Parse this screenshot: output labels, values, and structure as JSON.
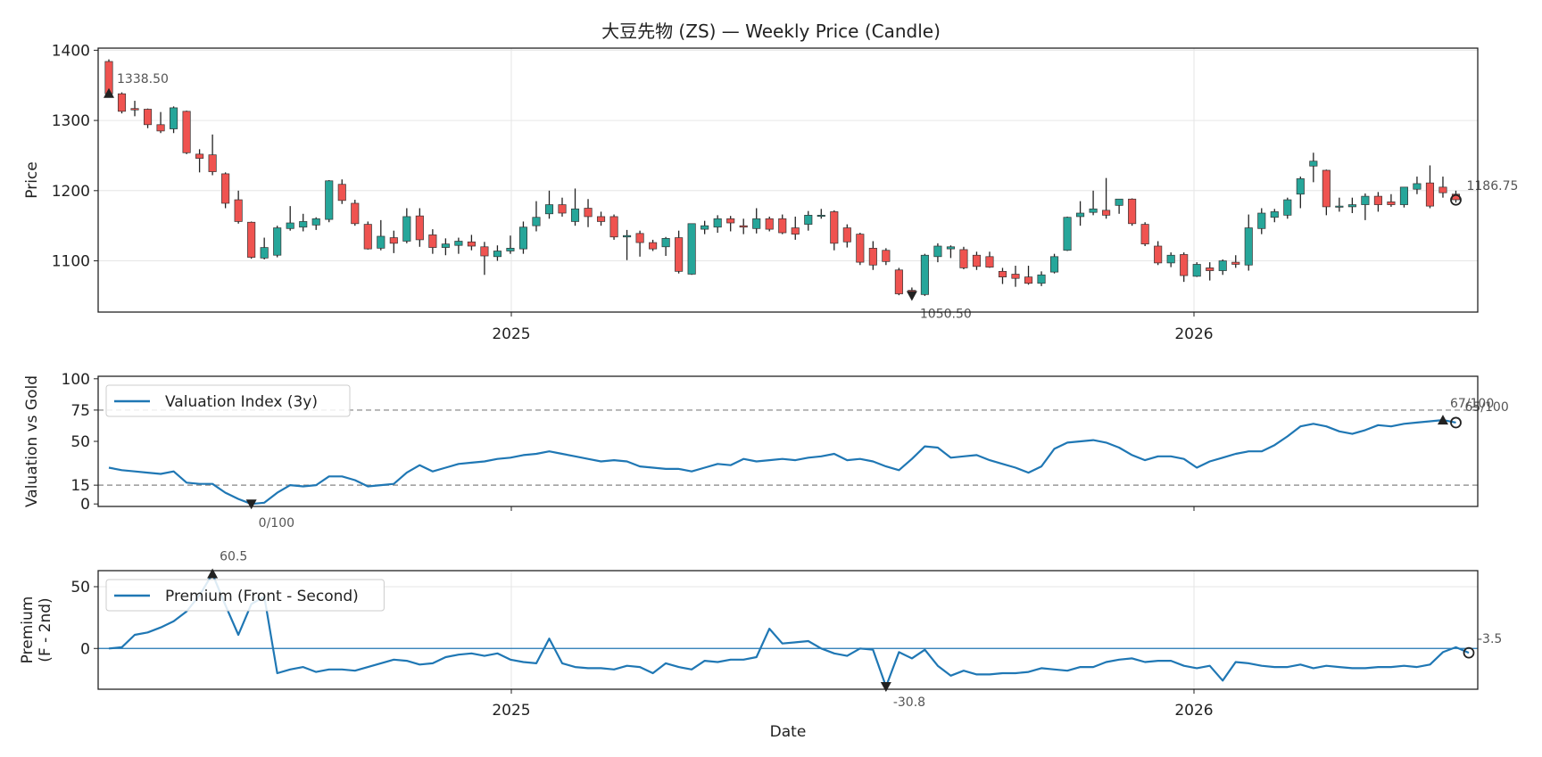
{
  "chart_data": [
    {
      "type": "candlestick",
      "title": "大豆先物 (ZS) — Weekly Price (Candle)",
      "ylabel": "Price",
      "ylim": [
        1027,
        1403
      ],
      "yticks": [
        1100,
        1200,
        1300,
        1400
      ],
      "xticks": [
        "2025",
        "2026"
      ],
      "grid": true,
      "colors": {
        "up": "#26a69a",
        "down": "#ef5350",
        "wick": "#222222"
      },
      "candles": [
        [
          1384,
          1387,
          1338,
          1338
        ],
        [
          1338,
          1340,
          1310,
          1313
        ],
        [
          1317,
          1328,
          1306,
          1315
        ],
        [
          1316,
          1317,
          1289,
          1294
        ],
        [
          1294,
          1312,
          1282,
          1285
        ],
        [
          1288,
          1320,
          1282,
          1318
        ],
        [
          1313,
          1314,
          1252,
          1254
        ],
        [
          1252,
          1259,
          1226,
          1246
        ],
        [
          1251,
          1280,
          1222,
          1227
        ],
        [
          1224,
          1226,
          1175,
          1182
        ],
        [
          1187,
          1200,
          1153,
          1156
        ],
        [
          1155,
          1156,
          1103,
          1105
        ],
        [
          1104,
          1133,
          1102,
          1119
        ],
        [
          1108,
          1150,
          1105,
          1147
        ],
        [
          1146,
          1178,
          1143,
          1154
        ],
        [
          1148,
          1167,
          1142,
          1156
        ],
        [
          1151,
          1162,
          1144,
          1160
        ],
        [
          1159,
          1215,
          1155,
          1214
        ],
        [
          1209,
          1216,
          1181,
          1186
        ],
        [
          1182,
          1187,
          1150,
          1153
        ],
        [
          1152,
          1156,
          1116,
          1117
        ],
        [
          1118,
          1158,
          1115,
          1135
        ],
        [
          1133,
          1143,
          1111,
          1125
        ],
        [
          1128,
          1175,
          1125,
          1163
        ],
        [
          1164,
          1175,
          1120,
          1130
        ],
        [
          1137,
          1145,
          1110,
          1119
        ],
        [
          1119,
          1132,
          1108,
          1124
        ],
        [
          1122,
          1133,
          1110,
          1128
        ],
        [
          1127,
          1137,
          1115,
          1121
        ],
        [
          1120,
          1127,
          1080,
          1107
        ],
        [
          1106,
          1122,
          1100,
          1114
        ],
        [
          1114,
          1136,
          1110,
          1118
        ],
        [
          1117,
          1156,
          1110,
          1148
        ],
        [
          1150,
          1185,
          1142,
          1162
        ],
        [
          1167,
          1200,
          1160,
          1180
        ],
        [
          1180,
          1190,
          1163,
          1168
        ],
        [
          1156,
          1203,
          1150,
          1174
        ],
        [
          1175,
          1188,
          1148,
          1163
        ],
        [
          1163,
          1170,
          1150,
          1156
        ],
        [
          1163,
          1166,
          1130,
          1134
        ],
        [
          1134,
          1144,
          1101,
          1136
        ],
        [
          1139,
          1143,
          1106,
          1126
        ],
        [
          1126,
          1130,
          1114,
          1117
        ],
        [
          1120,
          1134,
          1107,
          1132
        ],
        [
          1133,
          1143,
          1082,
          1085
        ],
        [
          1081,
          1153,
          1080,
          1153
        ],
        [
          1145,
          1157,
          1138,
          1150
        ],
        [
          1148,
          1165,
          1140,
          1160
        ],
        [
          1160,
          1164,
          1142,
          1154
        ],
        [
          1150,
          1160,
          1138,
          1148
        ],
        [
          1146,
          1175,
          1139,
          1160
        ],
        [
          1160,
          1163,
          1142,
          1145
        ],
        [
          1160,
          1166,
          1138,
          1140
        ],
        [
          1147,
          1163,
          1130,
          1138
        ],
        [
          1152,
          1171,
          1143,
          1165
        ],
        [
          1165,
          1174,
          1160,
          1165
        ],
        [
          1170,
          1172,
          1115,
          1125
        ],
        [
          1147,
          1152,
          1119,
          1127
        ],
        [
          1138,
          1140,
          1094,
          1098
        ],
        [
          1118,
          1128,
          1087,
          1094
        ],
        [
          1115,
          1118,
          1094,
          1099
        ],
        [
          1087,
          1090,
          1051,
          1053
        ],
        [
          1058,
          1062,
          1050,
          1057
        ],
        [
          1052,
          1110,
          1050,
          1108
        ],
        [
          1106,
          1125,
          1098,
          1121
        ],
        [
          1117,
          1122,
          1104,
          1120
        ],
        [
          1116,
          1120,
          1088,
          1090
        ],
        [
          1108,
          1113,
          1087,
          1092
        ],
        [
          1106,
          1113,
          1090,
          1091
        ],
        [
          1085,
          1090,
          1067,
          1077
        ],
        [
          1081,
          1093,
          1063,
          1075
        ],
        [
          1077,
          1093,
          1066,
          1068
        ],
        [
          1068,
          1085,
          1064,
          1080
        ],
        [
          1084,
          1110,
          1082,
          1106
        ],
        [
          1115,
          1163,
          1114,
          1162
        ],
        [
          1163,
          1185,
          1150,
          1168
        ],
        [
          1169,
          1200,
          1165,
          1174
        ],
        [
          1172,
          1218,
          1160,
          1165
        ],
        [
          1179,
          1188,
          1167,
          1188
        ],
        [
          1188,
          1189,
          1150,
          1153
        ],
        [
          1152,
          1155,
          1121,
          1124
        ],
        [
          1121,
          1128,
          1094,
          1097
        ],
        [
          1097,
          1112,
          1091,
          1108
        ],
        [
          1109,
          1112,
          1070,
          1079
        ],
        [
          1078,
          1098,
          1077,
          1095
        ],
        [
          1090,
          1098,
          1072,
          1086
        ],
        [
          1086,
          1102,
          1080,
          1100
        ],
        [
          1098,
          1108,
          1090,
          1095
        ],
        [
          1094,
          1166,
          1086,
          1147
        ],
        [
          1146,
          1175,
          1138,
          1168
        ],
        [
          1162,
          1174,
          1155,
          1170
        ],
        [
          1165,
          1190,
          1160,
          1187
        ],
        [
          1195,
          1220,
          1175,
          1217
        ],
        [
          1235,
          1254,
          1212,
          1242
        ],
        [
          1229,
          1230,
          1165,
          1177
        ],
        [
          1177,
          1190,
          1170,
          1178
        ],
        [
          1177,
          1190,
          1168,
          1180
        ],
        [
          1180,
          1196,
          1158,
          1192
        ],
        [
          1192,
          1198,
          1170,
          1180
        ],
        [
          1184,
          1195,
          1177,
          1180
        ],
        [
          1180,
          1205,
          1176,
          1205
        ],
        [
          1202,
          1220,
          1195,
          1210
        ],
        [
          1211,
          1236,
          1175,
          1178
        ],
        [
          1205,
          1220,
          1190,
          1197
        ],
        [
          1195,
          1200,
          1183,
          1187
        ]
      ],
      "annotations": [
        {
          "label": "1338.50",
          "index": 0,
          "value": 1338.5,
          "marker": "triangle-up"
        },
        {
          "label": "1050.50",
          "index": 62,
          "value": 1050.5,
          "marker": "triangle-down"
        },
        {
          "label": "1186.75",
          "index": 104,
          "value": 1186.75,
          "marker": "circle"
        }
      ]
    },
    {
      "type": "line",
      "ylabel": "Valuation vs Gold",
      "ylim": [
        -2,
        102
      ],
      "yticks": [
        0,
        15,
        50,
        75,
        100
      ],
      "reference_lines": [
        15,
        75
      ],
      "grid": false,
      "legend": "top-left",
      "series": [
        {
          "name": "Valuation Index (3y)",
          "color": "#1f77b4",
          "values": [
            29,
            27,
            26,
            25,
            24,
            26,
            17,
            16,
            16,
            9,
            4,
            0,
            1,
            9,
            15,
            14,
            15,
            22,
            22,
            19,
            14,
            15,
            16,
            25,
            31,
            26,
            29,
            32,
            33,
            34,
            36,
            37,
            39,
            40,
            42,
            40,
            38,
            36,
            34,
            35,
            34,
            30,
            29,
            28,
            28,
            26,
            29,
            32,
            31,
            36,
            34,
            35,
            36,
            35,
            37,
            38,
            40,
            35,
            36,
            34,
            30,
            27,
            36,
            46,
            45,
            37,
            38,
            39,
            35,
            32,
            29,
            25,
            30,
            44,
            49,
            50,
            51,
            49,
            45,
            39,
            35,
            38,
            38,
            36,
            29,
            34,
            37,
            40,
            42,
            42,
            47,
            54,
            62,
            64,
            62,
            58,
            56,
            59,
            63,
            62,
            64,
            65,
            66,
            67,
            65
          ]
        }
      ],
      "annotations": [
        {
          "label": "0/100",
          "index": 11,
          "value": 0,
          "marker": "triangle-down"
        },
        {
          "label": "67/100",
          "index": 103,
          "value": 67,
          "marker": "triangle-up"
        },
        {
          "label": "65/100",
          "index": 104,
          "value": 65,
          "marker": "circle"
        }
      ]
    },
    {
      "type": "line",
      "xlabel": "Date",
      "ylabel": "Premium\n(F - 2nd)",
      "ylim": [
        -33,
        63
      ],
      "yticks": [
        0,
        50
      ],
      "reference_lines": [
        0
      ],
      "xticks": [
        "2025",
        "2026"
      ],
      "grid": true,
      "legend": "top-left",
      "series": [
        {
          "name": "Premium (Front - Second)",
          "color": "#1f77b4",
          "values": [
            0,
            1,
            11,
            13,
            17,
            22,
            30,
            43,
            60.5,
            35,
            11,
            36,
            42,
            -20,
            -17,
            -15,
            -19,
            -17,
            -17,
            -18,
            -15,
            -12,
            -9,
            -10,
            -13,
            -12,
            -7,
            -5,
            -4,
            -6,
            -4,
            -9,
            -11,
            -12,
            8,
            -12,
            -15,
            -16,
            -16,
            -17,
            -14,
            -15,
            -20,
            -12,
            -15,
            -17,
            -10,
            -11,
            -9,
            -9,
            -7,
            16,
            4,
            5,
            6,
            0,
            -4,
            -6,
            0,
            -1,
            -30.8,
            -3,
            -8,
            -1,
            -14,
            -22,
            -18,
            -21,
            -21,
            -20,
            -20,
            -19,
            -16,
            -17,
            -18,
            -15,
            -15,
            -11,
            -9,
            -8,
            -11,
            -10,
            -10,
            -14,
            -16,
            -14,
            -26,
            -11,
            -12,
            -14,
            -15,
            -15,
            -13,
            -16,
            -14,
            -15,
            -16,
            -16,
            -15,
            -15,
            -14,
            -15,
            -13,
            -3,
            1,
            -3.5
          ]
        }
      ],
      "annotations": [
        {
          "label": "60.5",
          "index": 8,
          "value": 60.5,
          "marker": "triangle-up"
        },
        {
          "label": "-30.8",
          "index": 60,
          "value": -30.8,
          "marker": "triangle-down"
        },
        {
          "label": "-3.5",
          "index": 105,
          "value": -3.5,
          "marker": "circle"
        }
      ]
    }
  ]
}
